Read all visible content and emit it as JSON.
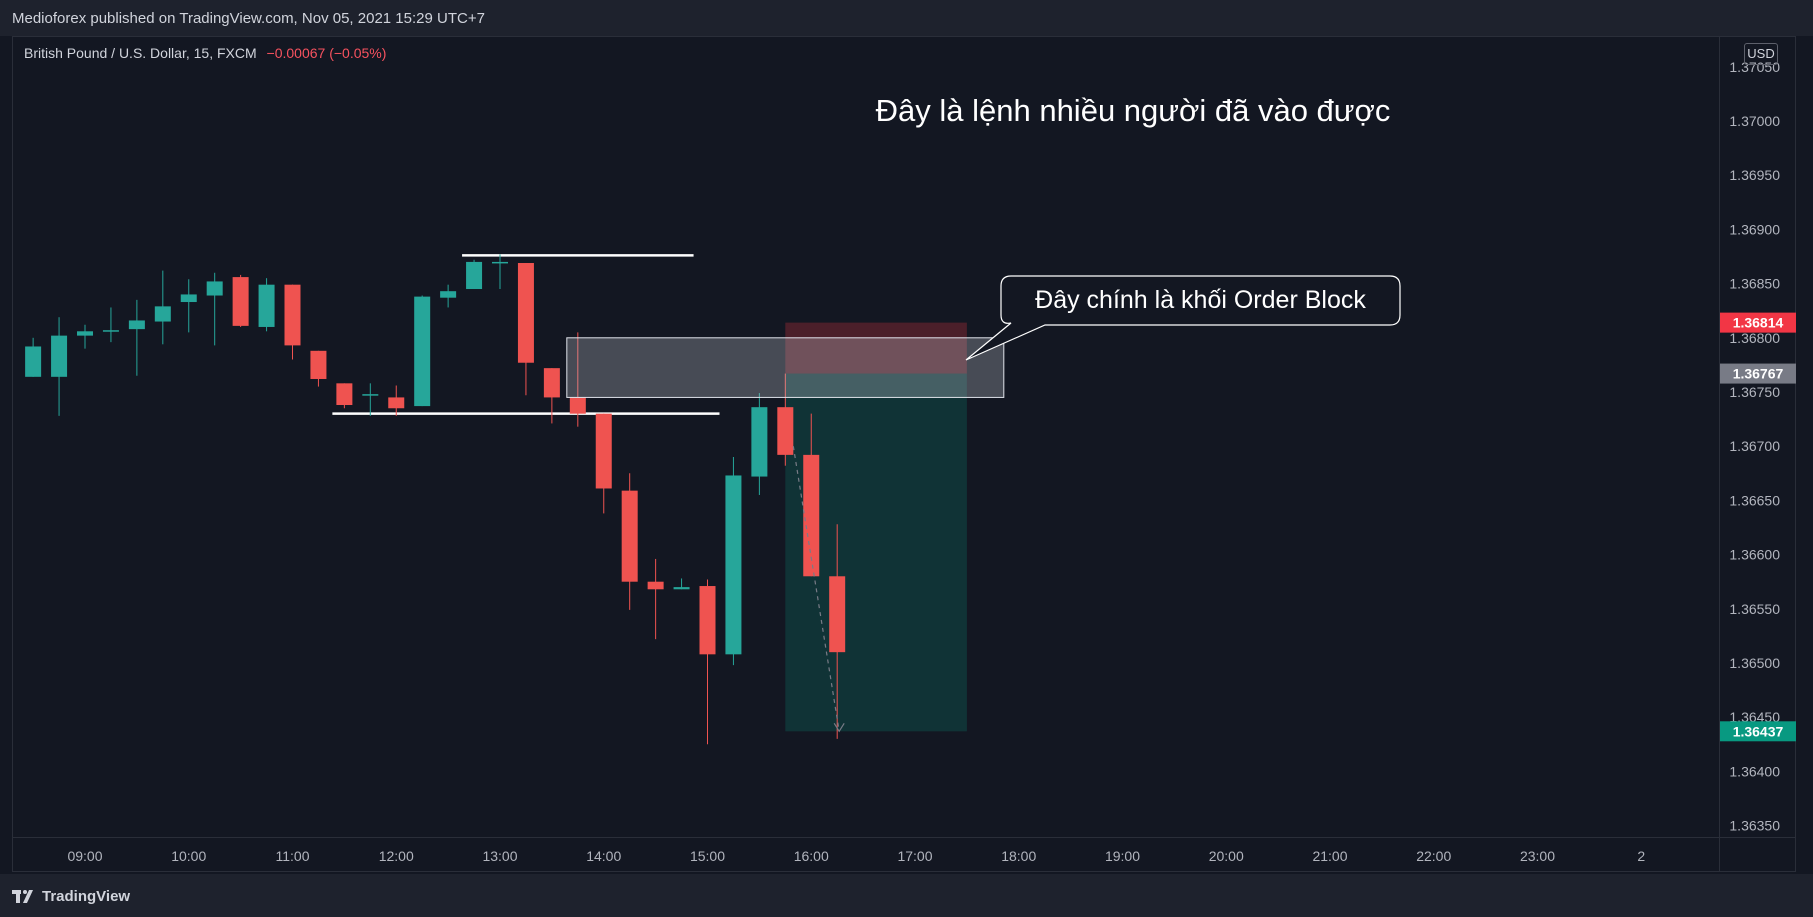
{
  "header": {
    "published": "Medioforex published on TradingView.com, Nov 05, 2021 15:29 UTC+7"
  },
  "legend": {
    "symbol": "British Pound / U.S. Dollar, 15, FXCM",
    "change": "−0.00067 (−0.05%)"
  },
  "currency_badge": "USD",
  "footer": {
    "brand": "TradingView",
    "logo_icon": "tradingview-logo-icon"
  },
  "colors": {
    "up": "#26a69a",
    "down": "#ef5350",
    "background": "#131722"
  },
  "chart_data": {
    "type": "candlestick",
    "title": "",
    "ylim": [
      1.3633,
      1.3707
    ],
    "y_ticks": [
      "1.37050",
      "1.37000",
      "1.36950",
      "1.36900",
      "1.36850",
      "1.36800",
      "1.36750",
      "1.36700",
      "1.36650",
      "1.36600",
      "1.36550",
      "1.36500",
      "1.36450",
      "1.36400",
      "1.36350"
    ],
    "x_ticks": [
      "09:00",
      "10:00",
      "11:00",
      "12:00",
      "13:00",
      "14:00",
      "15:00",
      "16:00",
      "17:00",
      "18:00",
      "19:00",
      "20:00",
      "21:00",
      "22:00",
      "23:00",
      "2"
    ],
    "candles": [
      {
        "t": "08:30",
        "o": 1.36764,
        "h": 1.368,
        "l": 1.36764,
        "c": 1.36792
      },
      {
        "t": "08:45",
        "o": 1.36764,
        "h": 1.36819,
        "l": 1.36728,
        "c": 1.36802
      },
      {
        "t": "09:00",
        "o": 1.36802,
        "h": 1.36812,
        "l": 1.3679,
        "c": 1.36806
      },
      {
        "t": "09:15",
        "o": 1.36806,
        "h": 1.36828,
        "l": 1.36796,
        "c": 1.36807
      },
      {
        "t": "09:30",
        "o": 1.36808,
        "h": 1.36835,
        "l": 1.36765,
        "c": 1.36816
      },
      {
        "t": "09:45",
        "o": 1.36815,
        "h": 1.36862,
        "l": 1.36794,
        "c": 1.36829
      },
      {
        "t": "10:00",
        "o": 1.36833,
        "h": 1.36854,
        "l": 1.36805,
        "c": 1.3684
      },
      {
        "t": "10:15",
        "o": 1.36839,
        "h": 1.3686,
        "l": 1.36793,
        "c": 1.36852
      },
      {
        "t": "10:30",
        "o": 1.36856,
        "h": 1.36858,
        "l": 1.3681,
        "c": 1.36811
      },
      {
        "t": "10:45",
        "o": 1.3681,
        "h": 1.36855,
        "l": 1.36806,
        "c": 1.36849
      },
      {
        "t": "11:00",
        "o": 1.36849,
        "h": 1.36849,
        "l": 1.3678,
        "c": 1.36793
      },
      {
        "t": "11:15",
        "o": 1.36788,
        "h": 1.36788,
        "l": 1.36755,
        "c": 1.36762
      },
      {
        "t": "11:30",
        "o": 1.36758,
        "h": 1.36758,
        "l": 1.36735,
        "c": 1.36738
      },
      {
        "t": "11:45",
        "o": 1.36748,
        "h": 1.36758,
        "l": 1.36728,
        "c": 1.36748
      },
      {
        "t": "12:00",
        "o": 1.36745,
        "h": 1.36756,
        "l": 1.36728,
        "c": 1.36735
      },
      {
        "t": "12:15",
        "o": 1.36737,
        "h": 1.36839,
        "l": 1.36737,
        "c": 1.36838
      },
      {
        "t": "12:30",
        "o": 1.36837,
        "h": 1.36849,
        "l": 1.36828,
        "c": 1.36843
      },
      {
        "t": "12:45",
        "o": 1.36845,
        "h": 1.36872,
        "l": 1.36845,
        "c": 1.3687
      },
      {
        "t": "13:00",
        "o": 1.36869,
        "h": 1.36877,
        "l": 1.36845,
        "c": 1.3687
      },
      {
        "t": "13:15",
        "o": 1.36869,
        "h": 1.36869,
        "l": 1.36747,
        "c": 1.36777
      },
      {
        "t": "13:30",
        "o": 1.36772,
        "h": 1.36772,
        "l": 1.36721,
        "c": 1.36745
      },
      {
        "t": "13:45",
        "o": 1.36745,
        "h": 1.36805,
        "l": 1.36718,
        "c": 1.3673
      },
      {
        "t": "14:00",
        "o": 1.3673,
        "h": 1.3673,
        "l": 1.36638,
        "c": 1.36661
      },
      {
        "t": "14:15",
        "o": 1.36659,
        "h": 1.36675,
        "l": 1.36549,
        "c": 1.36575
      },
      {
        "t": "14:30",
        "o": 1.36575,
        "h": 1.36596,
        "l": 1.36522,
        "c": 1.36568
      },
      {
        "t": "14:45",
        "o": 1.36568,
        "h": 1.36578,
        "l": 1.36568,
        "c": 1.3657
      },
      {
        "t": "15:00",
        "o": 1.36571,
        "h": 1.36577,
        "l": 1.36425,
        "c": 1.36508
      },
      {
        "t": "15:15",
        "o": 1.36508,
        "h": 1.3669,
        "l": 1.36498,
        "c": 1.36673
      },
      {
        "t": "15:30",
        "o": 1.36672,
        "h": 1.36749,
        "l": 1.36655,
        "c": 1.36736
      },
      {
        "t": "15:45",
        "o": 1.36736,
        "h": 1.36767,
        "l": 1.36682,
        "c": 1.36692
      },
      {
        "t": "16:00",
        "o": 1.36692,
        "h": 1.3673,
        "l": 1.3658,
        "c": 1.3658
      },
      {
        "t": "16:15",
        "o": 1.3658,
        "h": 1.36628,
        "l": 1.3643,
        "c": 1.3651
      }
    ],
    "price_labels": [
      {
        "value": "1.36814",
        "color": "#f23645"
      },
      {
        "value": "1.36767",
        "color": "#787b86"
      },
      {
        "value": "1.36437",
        "color": "#089981"
      }
    ],
    "levels": [
      {
        "name": "top-level-line",
        "y": 1.36876,
        "from": "12:45",
        "to": "14:45"
      },
      {
        "name": "bottom-level-line",
        "y": 1.3673,
        "from": "11:30",
        "to": "15:00"
      }
    ],
    "order_block": {
      "top": 1.368,
      "bottom": 1.36745,
      "from": "13:45",
      "to": "17:45"
    },
    "short_position": {
      "entry": 1.36767,
      "stop": 1.36814,
      "target": 1.36437,
      "from": "15:45",
      "to": "17:30"
    },
    "annotations": [
      "Đây là lệnh nhiều người đã vào được",
      "Đây chính là khối Order Block"
    ]
  }
}
